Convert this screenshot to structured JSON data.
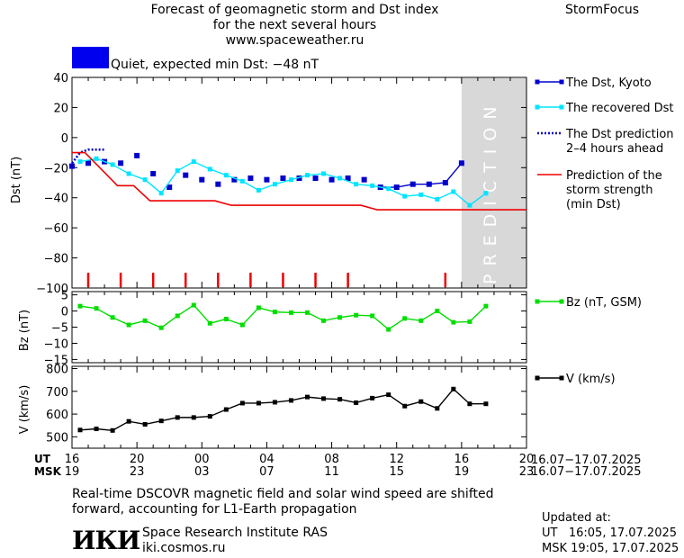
{
  "header": {
    "title_line1": "Forecast of geomagnetic storm and Dst index",
    "title_line2": "for the next several hours",
    "url": "www.spaceweather.ru",
    "brand": "StormFocus",
    "status_text": "Quiet, expected min Dst: −48 nT",
    "status_color": "#0000ee"
  },
  "footer": {
    "note_line1": "Real-time DSCOVR magnetic field and solar wind speed are shifted",
    "note_line2": "forward, accounting for L1-Earth propagation",
    "logo_text": "ИКИ",
    "institute": "Space Research Institute RAS",
    "site": "iki.cosmos.ru",
    "updated_label": "Updated at:",
    "updated_ut": "UT   16:05, 17.07.2025",
    "updated_msk": "MSK 19:05, 17.07.2025"
  },
  "chart_data": [
    {
      "type": "line",
      "ylabel": "Dst (nT)",
      "ylim": [
        -100,
        40
      ],
      "yticks": [
        -100,
        -80,
        -60,
        -40,
        -20,
        0,
        20,
        40
      ],
      "ytick_labels": [
        "−100",
        "−80",
        "−60",
        "−40",
        "−20",
        "0",
        "20",
        "40"
      ],
      "prediction_label": "PREDICTION",
      "prediction_region_ut_hours": [
        16,
        20
      ],
      "series": [
        {
          "name": "The Dst, Kyoto",
          "color": "#0000cc",
          "style": "square-markers",
          "x": [
            16,
            17,
            18,
            19,
            20,
            21,
            22,
            23,
            0,
            1,
            2,
            3,
            4,
            5,
            6,
            7,
            8,
            9,
            10,
            11,
            12,
            13,
            14,
            15,
            16
          ],
          "y": [
            -19,
            -17,
            -16,
            -17,
            -12,
            -24,
            -33,
            -25,
            -28,
            -31,
            -28,
            -27,
            -28,
            -27,
            -27,
            -27,
            -28,
            -27,
            -28,
            -33,
            -33,
            -31,
            -31,
            -30,
            -17
          ]
        },
        {
          "name": "The recovered Dst",
          "color": "#00e5ff",
          "style": "line-markers",
          "x": [
            16.5,
            17.5,
            18.5,
            19.5,
            20.5,
            21.5,
            22.5,
            23.5,
            0.5,
            1.5,
            2.5,
            3.5,
            4.5,
            5.5,
            6.5,
            7.5,
            8.5,
            9.5,
            10.5,
            11.5,
            12.5,
            13.5,
            14.5,
            15.5,
            16.5,
            17.5
          ],
          "y": [
            -16,
            -14,
            -18,
            -24,
            -28,
            -37,
            -22,
            -16,
            -21,
            -25,
            -29,
            -35,
            -31,
            -28,
            -25,
            -24,
            -27,
            -31,
            -32,
            -34,
            -39,
            -38,
            -41,
            -36,
            -45,
            -37
          ]
        },
        {
          "name": "The Dst prediction\n2–4 hours ahead",
          "color": "#0000cc",
          "style": "dotted",
          "x": [
            16,
            16.5,
            17,
            18
          ],
          "y": [
            -17,
            -10,
            -8,
            -8
          ]
        },
        {
          "name": "Prediction of the\nstorm strength\n(min Dst)",
          "color": "#ee0000",
          "style": "step-line",
          "x": [
            16,
            16.8,
            18.8,
            19.8,
            20.8,
            21.8,
            22.8,
            23.8,
            0.8,
            1.8,
            2.8,
            3.8,
            4.8,
            5.8,
            6.8,
            7.8,
            8.8,
            9.8,
            10.8,
            11.8,
            12.8,
            13.8,
            14.8,
            15.8,
            16.8,
            20
          ],
          "y": [
            -10,
            -10,
            -32,
            -32,
            -42,
            -42,
            -42,
            -42,
            -42,
            -45,
            -45,
            -45,
            -45,
            -45,
            -45,
            -45,
            -45,
            -45,
            -48,
            -48,
            -48,
            -48,
            -48,
            -48,
            -48,
            -48
          ]
        }
      ],
      "storm_markers_ut_hours": [
        17,
        19,
        21,
        23,
        1,
        3,
        5,
        7,
        9,
        15
      ]
    },
    {
      "type": "line",
      "ylabel": "Bz (nT)",
      "ylim": [
        -16,
        6
      ],
      "yticks": [
        5,
        0,
        -5,
        -10,
        -15
      ],
      "ytick_labels": [
        "5",
        "0",
        "−5",
        "−10",
        "−15"
      ],
      "series": [
        {
          "name": "Bz (nT, GSM)",
          "color": "#00dd00",
          "style": "line-markers",
          "x": [
            16.5,
            17.5,
            18.5,
            19.5,
            20.5,
            21.5,
            22.5,
            23.5,
            0.5,
            1.5,
            2.5,
            3.5,
            4.5,
            5.5,
            6.5,
            7.5,
            8.5,
            9.5,
            10.5,
            11.5,
            12.5,
            13.5,
            14.5,
            15.5,
            16.5,
            17.5
          ],
          "y": [
            1.5,
            0.8,
            -2.0,
            -4.3,
            -3.0,
            -5.2,
            -1.5,
            1.8,
            -3.8,
            -2.5,
            -4.3,
            1.0,
            -0.3,
            -0.5,
            -0.5,
            -3.0,
            -2.0,
            -1.3,
            -1.5,
            -5.7,
            -2.3,
            -3.0,
            0.0,
            -3.5,
            -3.3,
            1.5
          ]
        }
      ]
    },
    {
      "type": "line",
      "ylabel": "V (km/s)",
      "ylim": [
        450,
        810
      ],
      "yticks": [
        500,
        600,
        700,
        800
      ],
      "ytick_labels": [
        "500",
        "600",
        "700",
        "800"
      ],
      "series": [
        {
          "name": "V (km/s)",
          "color": "#000000",
          "style": "line-markers",
          "x": [
            16.5,
            17.5,
            18.5,
            19.5,
            20.5,
            21.5,
            22.5,
            23.5,
            0.5,
            1.5,
            2.5,
            3.5,
            4.5,
            5.5,
            6.5,
            7.5,
            8.5,
            9.5,
            10.5,
            11.5,
            12.5,
            13.5,
            14.5,
            15.5,
            16.5,
            17.5
          ],
          "y": [
            530,
            535,
            528,
            568,
            555,
            570,
            585,
            585,
            590,
            620,
            648,
            648,
            652,
            660,
            675,
            668,
            665,
            650,
            670,
            685,
            635,
            655,
            625,
            710,
            645,
            645
          ]
        }
      ]
    }
  ],
  "x_axis": {
    "ut_label": "UT",
    "msk_label": "MSK",
    "ut_ticks": [
      "16",
      "20",
      "00",
      "04",
      "08",
      "12",
      "16",
      "20"
    ],
    "msk_ticks": [
      "19",
      "23",
      "03",
      "07",
      "11",
      "15",
      "19",
      "23"
    ],
    "ut_range": "16.07−17.07.2025",
    "msk_range": "16.07−17.07.2025"
  }
}
